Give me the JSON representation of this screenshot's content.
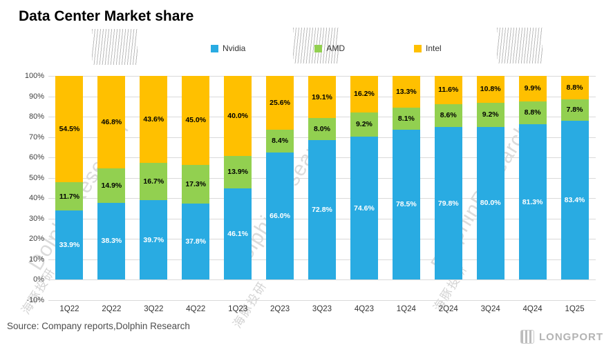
{
  "title": "Data Center  Market share",
  "source": "Source: Company reports,Dolphin Research",
  "brand": {
    "logo_text": "LONGPORT"
  },
  "watermark": {
    "text_en": "DolphinResearch",
    "text_cn": "海豚投研"
  },
  "chart_data": {
    "type": "bar",
    "stacked": true,
    "title": "Data Center  Market share",
    "categories": [
      "1Q22",
      "2Q22",
      "3Q22",
      "4Q22",
      "1Q23",
      "2Q23",
      "3Q23",
      "4Q23",
      "1Q24",
      "2Q24",
      "3Q24",
      "4Q24",
      "1Q25"
    ],
    "series": [
      {
        "name": "Nvidia",
        "color": "#29ABE2",
        "label_color": "#ffffff",
        "values": [
          33.9,
          38.3,
          39.7,
          37.8,
          46.1,
          66.0,
          72.8,
          74.6,
          78.5,
          79.8,
          80.0,
          81.3,
          83.4
        ]
      },
      {
        "name": "AMD",
        "color": "#92D050",
        "label_color": "#000000",
        "values": [
          11.7,
          14.9,
          16.7,
          17.3,
          13.9,
          8.4,
          8.0,
          9.2,
          8.1,
          8.6,
          9.2,
          8.8,
          7.8
        ]
      },
      {
        "name": "Intel",
        "color": "#FFC000",
        "label_color": "#000000",
        "values": [
          54.5,
          46.8,
          43.6,
          45.0,
          40.0,
          25.6,
          19.1,
          16.2,
          13.3,
          11.6,
          10.8,
          9.9,
          8.8
        ]
      }
    ],
    "ylim": [
      -10,
      100
    ],
    "ytick_step": 10,
    "ylabel_format": "percent",
    "grid": true,
    "legend_position": "top",
    "xlabel": "",
    "ylabel": ""
  }
}
